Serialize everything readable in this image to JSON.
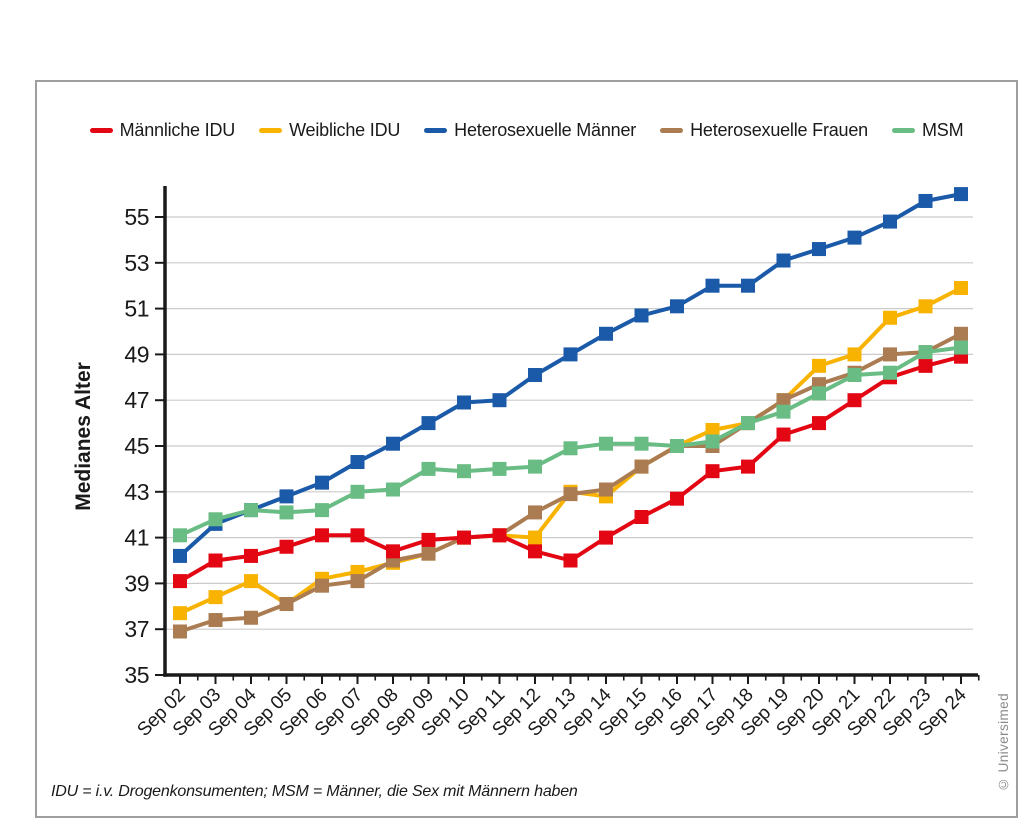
{
  "panel": {
    "border_color": "#9e9e9e",
    "background": "#ffffff"
  },
  "footnote": "IDU = i.v. Drogenkonsumenten; MSM = Männer, die Sex mit Männern haben",
  "copyright": "© Universimed",
  "style": {
    "axis_color": "#1a1a1a",
    "grid_color": "#cbcbcb",
    "text_color": "#1a1a1a"
  },
  "chart_data": {
    "type": "line",
    "title": "",
    "xlabel": "",
    "ylabel": "Medianes Alter",
    "ylim": [
      35,
      57
    ],
    "yticks": [
      35,
      37,
      39,
      41,
      43,
      45,
      47,
      49,
      51,
      53,
      55
    ],
    "grid": true,
    "legend_position": "top",
    "marker": "square",
    "categories": [
      "Sep 02",
      "Sep 03",
      "Sep 04",
      "Sep 05",
      "Sep 06",
      "Sep 07",
      "Sep 08",
      "Sep 09",
      "Sep 10",
      "Sep 11",
      "Sep 12",
      "Sep 13",
      "Sep 14",
      "Sep 15",
      "Sep 16",
      "Sep 17",
      "Sep 18",
      "Sep 19",
      "Sep 20",
      "Sep 21",
      "Sep 22",
      "Sep 23",
      "Sep 24"
    ],
    "series": [
      {
        "name": "Männliche IDU",
        "color": "#e30613",
        "values": [
          39.1,
          40.0,
          40.2,
          40.6,
          41.1,
          41.1,
          40.4,
          40.9,
          41.0,
          41.1,
          40.4,
          40.0,
          41.0,
          41.9,
          42.7,
          43.9,
          44.1,
          45.5,
          46.0,
          47.0,
          48.0,
          48.5,
          48.9
        ]
      },
      {
        "name": "Weibliche IDU",
        "color": "#f8b200",
        "values": [
          37.7,
          38.4,
          39.1,
          38.1,
          39.2,
          39.5,
          39.9,
          40.3,
          41.0,
          41.1,
          41.0,
          43.0,
          42.8,
          44.1,
          45.0,
          45.7,
          46.0,
          47.0,
          48.5,
          49.0,
          50.6,
          51.1,
          51.9
        ]
      },
      {
        "name": "Heterosexuelle Männer",
        "color": "#1a5aa8",
        "values": [
          40.2,
          41.6,
          42.2,
          42.8,
          43.4,
          44.3,
          45.1,
          46.0,
          46.9,
          47.0,
          48.1,
          49.0,
          49.9,
          50.7,
          51.1,
          52.0,
          52.0,
          53.1,
          53.6,
          54.1,
          54.8,
          55.7,
          56.0
        ]
      },
      {
        "name": "Heterosexuelle Frauen",
        "color": "#ab7b51",
        "values": [
          36.9,
          37.4,
          37.5,
          38.1,
          38.9,
          39.1,
          40.0,
          40.3,
          41.0,
          41.1,
          42.1,
          42.9,
          43.1,
          44.1,
          45.0,
          45.0,
          46.0,
          47.0,
          47.7,
          48.2,
          49.0,
          49.1,
          49.9
        ]
      },
      {
        "name": "MSM",
        "color": "#6abc85",
        "values": [
          41.1,
          41.8,
          42.2,
          42.1,
          42.2,
          43.0,
          43.1,
          44.0,
          43.9,
          44.0,
          44.1,
          44.9,
          45.1,
          45.1,
          45.0,
          45.2,
          46.0,
          46.5,
          47.3,
          48.1,
          48.2,
          49.1,
          49.3
        ]
      }
    ],
    "draw_order": [
      "Weibliche IDU",
      "Heterosexuelle Frauen",
      "Heterosexuelle Männer",
      "Männliche IDU",
      "MSM"
    ]
  }
}
